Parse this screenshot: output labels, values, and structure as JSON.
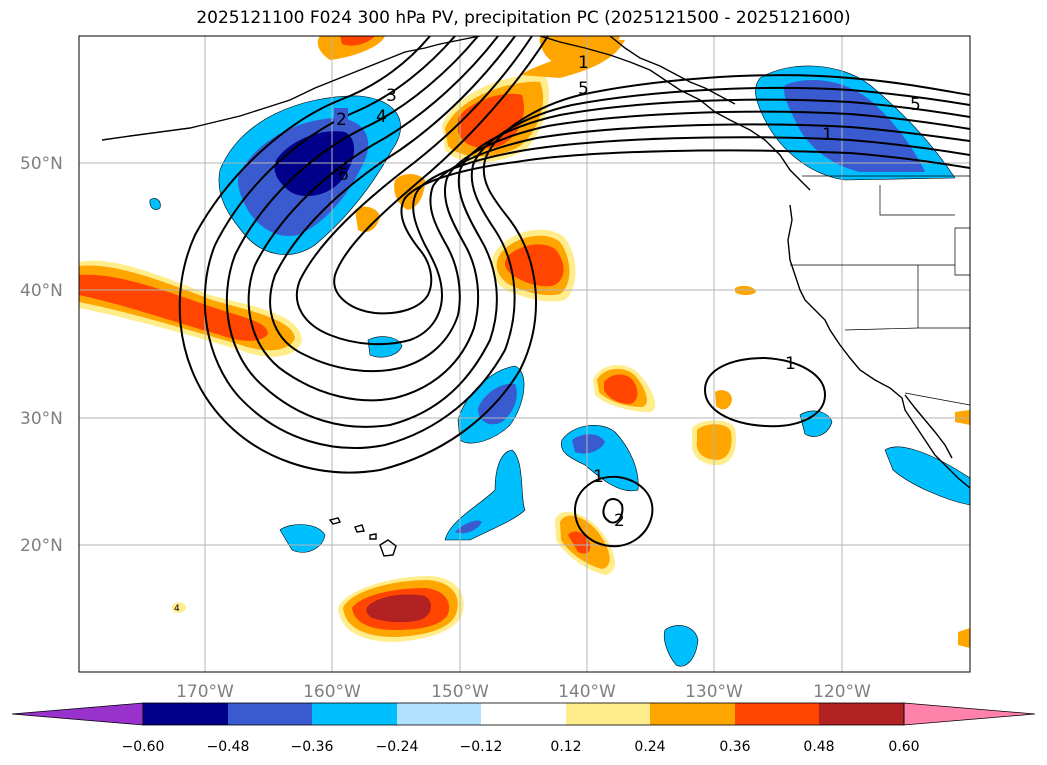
{
  "title": "2025121100 F024 300 hPa PV, precipitation PC (2025121500 - 2025121600)",
  "lat_labels": [
    "50°N",
    "40°N",
    "30°N",
    "20°N"
  ],
  "lon_labels": [
    "170°W",
    "160°W",
    "150°W",
    "140°W",
    "130°W",
    "120°W"
  ],
  "colorbar": {
    "ticks": [
      "−0.60",
      "−0.48",
      "−0.36",
      "−0.24",
      "−0.12",
      "0.12",
      "0.24",
      "0.36",
      "0.48",
      "0.60"
    ],
    "colors": [
      "#9932cc",
      "#00008b",
      "#3a5bd0",
      "#00bfff",
      "#b0e2ff",
      "#ffffff",
      "#ffec8b",
      "#ffa500",
      "#ff4500",
      "#b22222",
      "#ff82ab"
    ]
  },
  "contour_labels": [
    "2",
    "3",
    "4",
    "6",
    "1",
    "5",
    "5",
    "1",
    "1",
    "1",
    "2",
    "4"
  ]
}
